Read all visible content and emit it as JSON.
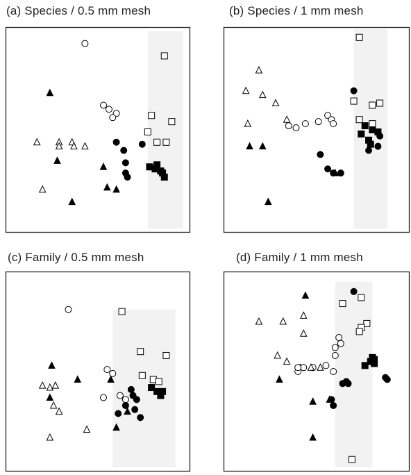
{
  "chart_data": [
    {
      "type": "scatter",
      "title": "(a) Species / 0.5 mm mesh",
      "shaded_band": {
        "x": [
          0.77,
          0.96
        ],
        "y": [
          0.02,
          0.98
        ],
        "color": "#f2f2f2"
      },
      "series": [
        {
          "marker": "open-circle",
          "points": [
            [
              0.43,
              0.92
            ],
            [
              0.53,
              0.62
            ],
            [
              0.56,
              0.6
            ],
            [
              0.6,
              0.58
            ],
            [
              0.58,
              0.56
            ]
          ]
        },
        {
          "marker": "filled-circle",
          "points": [
            [
              0.6,
              0.44
            ],
            [
              0.64,
              0.4
            ],
            [
              0.74,
              0.43
            ],
            [
              0.65,
              0.34
            ],
            [
              0.65,
              0.29
            ],
            [
              0.66,
              0.27
            ]
          ]
        },
        {
          "marker": "open-triangle",
          "points": [
            [
              0.17,
              0.44
            ],
            [
              0.29,
              0.44
            ],
            [
              0.29,
              0.42
            ],
            [
              0.36,
              0.44
            ],
            [
              0.37,
              0.42
            ],
            [
              0.43,
              0.42
            ],
            [
              0.2,
              0.21
            ]
          ]
        },
        {
          "marker": "filled-triangle",
          "points": [
            [
              0.24,
              0.68
            ],
            [
              0.28,
              0.35
            ],
            [
              0.53,
              0.32
            ],
            [
              0.55,
              0.22
            ],
            [
              0.6,
              0.21
            ],
            [
              0.36,
              0.15
            ]
          ]
        },
        {
          "marker": "open-square",
          "points": [
            [
              0.86,
              0.86
            ],
            [
              0.79,
              0.57
            ],
            [
              0.9,
              0.54
            ],
            [
              0.77,
              0.49
            ],
            [
              0.82,
              0.44
            ],
            [
              0.87,
              0.44
            ]
          ]
        },
        {
          "marker": "filled-square",
          "points": [
            [
              0.78,
              0.32
            ],
            [
              0.82,
              0.33
            ],
            [
              0.84,
              0.3
            ],
            [
              0.81,
              0.31
            ],
            [
              0.85,
              0.29
            ],
            [
              0.86,
              0.27
            ]
          ]
        }
      ]
    },
    {
      "type": "scatter",
      "title": "(b) Species / 1 mm mesh",
      "shaded_band": {
        "x": [
          0.7,
          0.88
        ],
        "y": [
          0.02,
          0.99
        ],
        "color": "#f2f2f2"
      },
      "series": [
        {
          "marker": "open-circle",
          "points": [
            [
              0.35,
              0.52
            ],
            [
              0.39,
              0.51
            ],
            [
              0.44,
              0.53
            ],
            [
              0.51,
              0.54
            ],
            [
              0.56,
              0.57
            ],
            [
              0.58,
              0.55
            ],
            [
              0.59,
              0.53
            ]
          ]
        },
        {
          "marker": "filled-circle",
          "points": [
            [
              0.7,
              0.69
            ],
            [
              0.52,
              0.38
            ],
            [
              0.56,
              0.31
            ],
            [
              0.59,
              0.29
            ],
            [
              0.63,
              0.29
            ],
            [
              0.78,
              0.4
            ],
            [
              0.83,
              0.42
            ],
            [
              0.84,
              0.47
            ]
          ]
        },
        {
          "marker": "open-triangle",
          "points": [
            [
              0.19,
              0.79
            ],
            [
              0.12,
              0.69
            ],
            [
              0.21,
              0.67
            ],
            [
              0.28,
              0.63
            ],
            [
              0.34,
              0.55
            ],
            [
              0.13,
              0.53
            ]
          ]
        },
        {
          "marker": "filled-triangle",
          "points": [
            [
              0.14,
              0.42
            ],
            [
              0.21,
              0.42
            ],
            [
              0.6,
              0.29
            ],
            [
              0.24,
              0.15
            ]
          ]
        },
        {
          "marker": "open-square",
          "points": [
            [
              0.73,
              0.95
            ],
            [
              0.7,
              0.64
            ],
            [
              0.8,
              0.62
            ],
            [
              0.84,
              0.63
            ],
            [
              0.73,
              0.55
            ],
            [
              0.8,
              0.53
            ]
          ]
        },
        {
          "marker": "filled-square",
          "points": [
            [
              0.76,
              0.52
            ],
            [
              0.8,
              0.5
            ],
            [
              0.83,
              0.49
            ],
            [
              0.74,
              0.48
            ],
            [
              0.78,
              0.45
            ],
            [
              0.79,
              0.43
            ]
          ]
        }
      ]
    },
    {
      "type": "scatter",
      "title": "(c) Family / 0.5 mm mesh",
      "shaded_band": {
        "x": [
          0.58,
          0.92
        ],
        "y": [
          0.02,
          0.81
        ],
        "color": "#f2f2f2"
      },
      "series": [
        {
          "marker": "open-circle",
          "points": [
            [
              0.34,
              0.81
            ],
            [
              0.55,
              0.51
            ],
            [
              0.58,
              0.49
            ],
            [
              0.62,
              0.38
            ],
            [
              0.65,
              0.36
            ],
            [
              0.53,
              0.37
            ]
          ]
        },
        {
          "marker": "filled-circle",
          "points": [
            [
              0.68,
              0.41
            ],
            [
              0.69,
              0.38
            ],
            [
              0.71,
              0.36
            ],
            [
              0.65,
              0.33
            ],
            [
              0.7,
              0.31
            ],
            [
              0.61,
              0.29
            ],
            [
              0.73,
              0.27
            ]
          ]
        },
        {
          "marker": "open-triangle",
          "points": [
            [
              0.2,
              0.43
            ],
            [
              0.24,
              0.42
            ],
            [
              0.27,
              0.43
            ],
            [
              0.26,
              0.33
            ],
            [
              0.29,
              0.3
            ],
            [
              0.44,
              0.21
            ],
            [
              0.24,
              0.17
            ]
          ]
        },
        {
          "marker": "filled-triangle",
          "points": [
            [
              0.25,
              0.53
            ],
            [
              0.39,
              0.46
            ],
            [
              0.57,
              0.46
            ],
            [
              0.24,
              0.37
            ],
            [
              0.66,
              0.3
            ],
            [
              0.6,
              0.22
            ]
          ]
        },
        {
          "marker": "open-square",
          "points": [
            [
              0.63,
              0.8
            ],
            [
              0.73,
              0.6
            ],
            [
              0.87,
              0.58
            ],
            [
              0.74,
              0.48
            ],
            [
              0.8,
              0.46
            ],
            [
              0.83,
              0.45
            ]
          ]
        },
        {
          "marker": "filled-square",
          "points": [
            [
              0.79,
              0.42
            ],
            [
              0.82,
              0.4
            ],
            [
              0.84,
              0.38
            ],
            [
              0.85,
              0.4
            ]
          ]
        }
      ]
    },
    {
      "type": "scatter",
      "title": "(d) Family / 1 mm mesh",
      "shaded_band": {
        "x": [
          0.6,
          0.8
        ],
        "y": [
          0.02,
          0.95
        ],
        "color": "#f2f2f2"
      },
      "series": [
        {
          "marker": "open-circle",
          "points": [
            [
              0.62,
              0.67
            ],
            [
              0.63,
              0.64
            ],
            [
              0.6,
              0.62
            ],
            [
              0.6,
              0.58
            ],
            [
              0.55,
              0.53
            ],
            [
              0.48,
              0.52
            ],
            [
              0.41,
              0.52
            ],
            [
              0.4,
              0.5
            ],
            [
              0.43,
              0.52
            ],
            [
              0.59,
              0.5
            ],
            [
              0.4,
              0.52
            ]
          ]
        },
        {
          "marker": "filled-circle",
          "points": [
            [
              0.7,
              0.9
            ],
            [
              0.64,
              0.44
            ],
            [
              0.67,
              0.44
            ],
            [
              0.58,
              0.36
            ],
            [
              0.59,
              0.33
            ],
            [
              0.87,
              0.47
            ],
            [
              0.88,
              0.46
            ],
            [
              0.66,
              0.45
            ]
          ]
        },
        {
          "marker": "open-triangle",
          "points": [
            [
              0.19,
              0.75
            ],
            [
              0.32,
              0.75
            ],
            [
              0.43,
              0.78
            ],
            [
              0.43,
              0.69
            ],
            [
              0.29,
              0.58
            ],
            [
              0.34,
              0.55
            ],
            [
              0.47,
              0.52
            ],
            [
              0.52,
              0.52
            ]
          ]
        },
        {
          "marker": "filled-triangle",
          "points": [
            [
              0.44,
              0.88
            ],
            [
              0.3,
              0.46
            ],
            [
              0.48,
              0.35
            ],
            [
              0.57,
              0.36
            ],
            [
              0.48,
              0.17
            ]
          ]
        },
        {
          "marker": "open-square",
          "points": [
            [
              0.64,
              0.84
            ],
            [
              0.74,
              0.87
            ],
            [
              0.77,
              0.74
            ],
            [
              0.74,
              0.72
            ],
            [
              0.73,
              0.7
            ],
            [
              0.69,
              0.06
            ]
          ]
        },
        {
          "marker": "filled-square",
          "points": [
            [
              0.8,
              0.57
            ],
            [
              0.81,
              0.56
            ],
            [
              0.76,
              0.53
            ],
            [
              0.79,
              0.55
            ],
            [
              0.81,
              0.54
            ]
          ]
        }
      ]
    }
  ]
}
